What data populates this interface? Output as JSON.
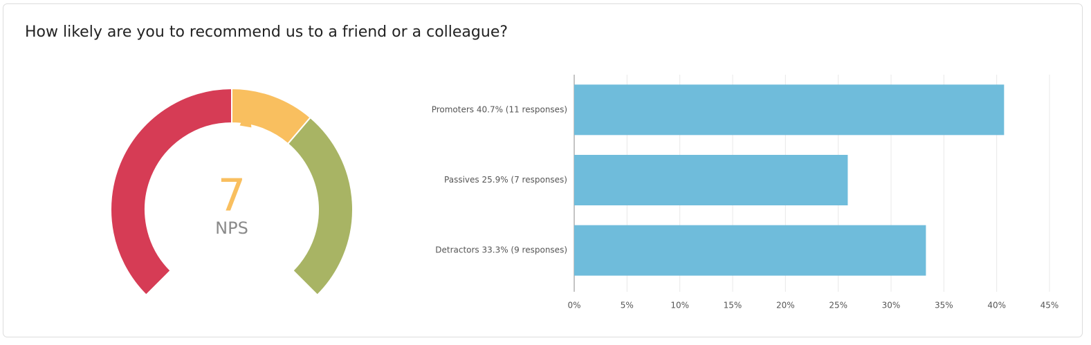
{
  "title": "How likely are you to recommend us to a friend or a colleague?",
  "chart_data": [
    {
      "type": "gauge",
      "value": 7,
      "label": "NPS",
      "range": [
        -100,
        100
      ],
      "bands": [
        {
          "from": -100,
          "to": 0,
          "color": "#d63c55"
        },
        {
          "from": 0,
          "to": 30,
          "color": "#f9bf5f"
        },
        {
          "from": 30,
          "to": 100,
          "color": "#a8b464"
        }
      ]
    },
    {
      "type": "hbar",
      "categories": [
        "Promoters 40.7% (11 responses)",
        "Passives 25.9% (7 responses)",
        "Detractors 33.3% (9 responses)"
      ],
      "values": [
        40.7,
        25.9,
        33.3
      ],
      "color": "#6fbcdb",
      "xlim": [
        0,
        45
      ],
      "xticks": [
        {
          "value": 0,
          "label": "0%"
        },
        {
          "value": 5,
          "label": "5%"
        },
        {
          "value": 10,
          "label": "10%"
        },
        {
          "value": 15,
          "label": "15%"
        },
        {
          "value": 20,
          "label": "20%"
        },
        {
          "value": 25,
          "label": "25%"
        },
        {
          "value": 30,
          "label": "30%"
        },
        {
          "value": 35,
          "label": "35%"
        },
        {
          "value": 40,
          "label": "40%"
        },
        {
          "value": 45,
          "label": "45%"
        }
      ],
      "grid": true
    }
  ]
}
